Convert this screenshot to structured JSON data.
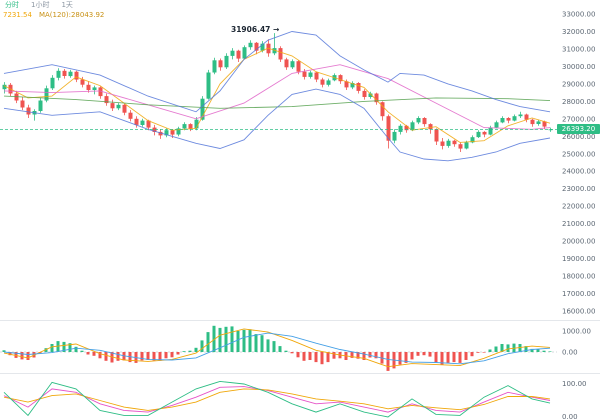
{
  "header": {
    "tabs": [
      {
        "label": "分时",
        "color": "#2ebd85"
      },
      {
        "label": "1小时",
        "color": "#8a94a0"
      },
      {
        "label": "1天",
        "color": "#8a94a0"
      }
    ],
    "legend": [
      {
        "text": "7231.54",
        "color": "#f0a70a"
      },
      {
        "text": "MA(120):28043.92",
        "color": "#c89116"
      }
    ]
  },
  "chart_data": {
    "type": "candlestick",
    "title": "",
    "last_price": 26393.2,
    "last_price_label": "26393.20",
    "annotation": {
      "text": "31906.47 →",
      "price": 31906.47
    },
    "colors": {
      "up": "#2ebd85",
      "down": "#ef5350",
      "axis_text": "#5c6773",
      "divider": "#e4e7eb",
      "zero_line": "#c8cdd4"
    },
    "y_axis": {
      "min": 16000,
      "max": 33000,
      "tick_step": 1000,
      "grid": false
    },
    "y_ticks": [
      {
        "value": 33000,
        "label": "33000.00"
      },
      {
        "value": 32000,
        "label": "32000.00"
      },
      {
        "value": 31000,
        "label": "31000.00"
      },
      {
        "value": 30000,
        "label": "30000.00"
      },
      {
        "value": 29000,
        "label": "29000.00"
      },
      {
        "value": 28000,
        "label": "28000.00"
      },
      {
        "value": 27000,
        "label": "27000.00"
      },
      {
        "value": 26000,
        "label": "26000.00"
      },
      {
        "value": 25000,
        "label": "25000.00"
      },
      {
        "value": 24000,
        "label": "24000.00"
      },
      {
        "value": 23000,
        "label": "23000.00"
      },
      {
        "value": 22000,
        "label": "22000.00"
      },
      {
        "value": 21000,
        "label": "21000.00"
      },
      {
        "value": 20000,
        "label": "20000.00"
      },
      {
        "value": 19000,
        "label": "19000.00"
      },
      {
        "value": 18000,
        "label": "18000.00"
      },
      {
        "value": 17000,
        "label": "17000.00"
      },
      {
        "value": 16000,
        "label": "16000.00"
      }
    ],
    "candles": [
      [
        28700,
        29100,
        28450,
        28950
      ],
      [
        28950,
        29050,
        28300,
        28450
      ],
      [
        28450,
        28600,
        27900,
        28050
      ],
      [
        28050,
        28250,
        27500,
        27650
      ],
      [
        27650,
        27800,
        27050,
        27250
      ],
      [
        27250,
        27550,
        26900,
        27450
      ],
      [
        27450,
        28200,
        27350,
        28050
      ],
      [
        28050,
        28900,
        27950,
        28750
      ],
      [
        28750,
        29500,
        28650,
        29350
      ],
      [
        29350,
        29900,
        29200,
        29750
      ],
      [
        29750,
        29850,
        29300,
        29450
      ],
      [
        29450,
        29800,
        29350,
        29700
      ],
      [
        29700,
        29750,
        29100,
        29250
      ],
      [
        29250,
        29400,
        28800,
        28950
      ],
      [
        28950,
        29150,
        28500,
        28650
      ],
      [
        28650,
        28900,
        28400,
        28800
      ],
      [
        28800,
        28850,
        28150,
        28300
      ],
      [
        28300,
        28450,
        27750,
        27900
      ],
      [
        27900,
        28100,
        27450,
        27600
      ],
      [
        27600,
        27900,
        27500,
        27800
      ],
      [
        27800,
        27850,
        27200,
        27350
      ],
      [
        27350,
        27500,
        26850,
        27000
      ],
      [
        27000,
        27150,
        26500,
        26650
      ],
      [
        26650,
        27000,
        26550,
        26900
      ],
      [
        26900,
        26950,
        26350,
        26500
      ],
      [
        26500,
        26650,
        26050,
        26250
      ],
      [
        26250,
        26400,
        25850,
        26050
      ],
      [
        26050,
        26450,
        25950,
        26350
      ],
      [
        26350,
        26400,
        25900,
        26100
      ],
      [
        26100,
        26550,
        26000,
        26450
      ],
      [
        26450,
        26800,
        26350,
        26700
      ],
      [
        26700,
        26750,
        26300,
        26450
      ],
      [
        26450,
        27100,
        26350,
        26950
      ],
      [
        26950,
        28300,
        26900,
        28150
      ],
      [
        28150,
        29800,
        28100,
        29650
      ],
      [
        29650,
        30500,
        29550,
        30350
      ],
      [
        30350,
        30450,
        29750,
        29950
      ],
      [
        29950,
        30750,
        29850,
        30600
      ],
      [
        30600,
        31050,
        30400,
        30900
      ],
      [
        30900,
        30950,
        30250,
        30450
      ],
      [
        30450,
        31200,
        30400,
        31100
      ],
      [
        31100,
        31500,
        30950,
        31350
      ],
      [
        31350,
        31400,
        30700,
        30900
      ],
      [
        30900,
        31450,
        30800,
        31300
      ],
      [
        31300,
        31550,
        30550,
        30750
      ],
      [
        30750,
        31906,
        30650,
        31050
      ],
      [
        31050,
        31150,
        30250,
        30400
      ],
      [
        30400,
        30500,
        29800,
        29950
      ],
      [
        29950,
        30400,
        29850,
        30300
      ],
      [
        30300,
        30350,
        29550,
        29700
      ],
      [
        29700,
        29850,
        29250,
        29400
      ],
      [
        29400,
        29750,
        29300,
        29650
      ],
      [
        29650,
        29700,
        29100,
        29250
      ],
      [
        29250,
        29350,
        28800,
        28950
      ],
      [
        28950,
        29300,
        28850,
        29200
      ],
      [
        29200,
        29600,
        29150,
        29500
      ],
      [
        29500,
        29550,
        29000,
        29150
      ],
      [
        29150,
        29250,
        28650,
        28800
      ],
      [
        28800,
        29150,
        28700,
        29050
      ],
      [
        29050,
        29100,
        28450,
        28600
      ],
      [
        28600,
        28700,
        28100,
        28250
      ],
      [
        28250,
        28550,
        28150,
        28450
      ],
      [
        28450,
        28500,
        27800,
        27950
      ],
      [
        27950,
        28000,
        26900,
        27150
      ],
      [
        27150,
        27250,
        25300,
        25750
      ],
      [
        25750,
        26400,
        25600,
        26250
      ],
      [
        26250,
        26700,
        26100,
        26600
      ],
      [
        26600,
        26650,
        26200,
        26350
      ],
      [
        26350,
        26900,
        26300,
        26800
      ],
      [
        26800,
        27150,
        26700,
        27050
      ],
      [
        27050,
        27100,
        26550,
        26700
      ],
      [
        26700,
        26750,
        26150,
        26400
      ],
      [
        26400,
        26450,
        25500,
        25700
      ],
      [
        25700,
        25900,
        25250,
        25450
      ],
      [
        25450,
        25850,
        25350,
        25750
      ],
      [
        25750,
        25800,
        25400,
        25550
      ],
      [
        25550,
        25650,
        25100,
        25300
      ],
      [
        25300,
        25750,
        25250,
        25650
      ],
      [
        25650,
        26050,
        25600,
        25950
      ],
      [
        25950,
        26350,
        25900,
        26250
      ],
      [
        26250,
        26300,
        25950,
        26100
      ],
      [
        26100,
        26600,
        26050,
        26500
      ],
      [
        26500,
        26900,
        26450,
        26800
      ],
      [
        26800,
        27150,
        26750,
        27050
      ],
      [
        27050,
        27100,
        26750,
        26900
      ],
      [
        26900,
        27250,
        26850,
        27150
      ],
      [
        27150,
        27400,
        27050,
        27250
      ],
      [
        27250,
        27300,
        26800,
        26950
      ],
      [
        26950,
        27000,
        26550,
        26700
      ],
      [
        26700,
        26950,
        26600,
        26850
      ],
      [
        26850,
        26900,
        26400,
        26550
      ],
      [
        26350,
        26500,
        26250,
        26393.2
      ]
    ],
    "overlays": {
      "ma7": {
        "color": "#f0a70a",
        "idx": [
          0,
          4,
          8,
          12,
          16,
          20,
          24,
          28,
          32,
          36,
          40,
          44,
          48,
          52,
          56,
          60,
          64,
          68,
          72,
          76,
          80,
          84,
          88,
          91
        ],
        "values": [
          28900,
          28200,
          28300,
          29400,
          28900,
          27900,
          26900,
          26350,
          26450,
          29000,
          30400,
          31050,
          30600,
          29700,
          29250,
          28800,
          27400,
          26350,
          26550,
          25650,
          25750,
          26600,
          27050,
          26750
        ]
      },
      "ma30": {
        "color": "#e064c8",
        "idx": [
          0,
          8,
          16,
          24,
          32,
          40,
          48,
          56,
          64,
          72,
          80,
          88,
          91
        ],
        "values": [
          28600,
          28500,
          28600,
          27800,
          27000,
          27900,
          29600,
          30100,
          29300,
          27900,
          26500,
          26400,
          26500
        ]
      },
      "ma120": {
        "color": "#55a14e",
        "idx": [
          0,
          12,
          24,
          36,
          48,
          60,
          72,
          84,
          91
        ],
        "values": [
          28300,
          28100,
          27800,
          27600,
          27700,
          28000,
          28200,
          28150,
          28044
        ]
      },
      "boll_upper": {
        "color": "#5577d9",
        "idx": [
          0,
          8,
          16,
          24,
          32,
          36,
          40,
          44,
          48,
          52,
          56,
          60,
          64,
          66,
          70,
          74,
          78,
          82,
          86,
          91
        ],
        "values": [
          29600,
          30100,
          29500,
          28300,
          27400,
          28600,
          30400,
          31500,
          32000,
          31800,
          30600,
          29800,
          29100,
          29600,
          29500,
          29000,
          28600,
          28100,
          27700,
          27400
        ]
      },
      "boll_lower": {
        "color": "#5577d9",
        "idx": [
          0,
          8,
          16,
          24,
          32,
          36,
          40,
          44,
          48,
          52,
          56,
          60,
          64,
          66,
          70,
          74,
          78,
          82,
          86,
          91
        ],
        "values": [
          27600,
          27200,
          27400,
          26400,
          25600,
          25300,
          25800,
          27200,
          28400,
          28700,
          28400,
          27600,
          25900,
          25100,
          24700,
          24600,
          24800,
          25100,
          25600,
          25900
        ]
      }
    },
    "macd": {
      "labels": [
        {
          "value": 1000,
          "label": "1000.00"
        },
        {
          "value": 0,
          "label": "0.00"
        }
      ],
      "histogram": [
        80,
        -150,
        -280,
        -350,
        -380,
        -260,
        -60,
        180,
        380,
        520,
        480,
        420,
        250,
        60,
        -120,
        -180,
        -300,
        -420,
        -500,
        -420,
        -400,
        -480,
        -520,
        -400,
        -380,
        -400,
        -420,
        -300,
        -250,
        -120,
        40,
        60,
        200,
        550,
        950,
        1250,
        1150,
        1200,
        1220,
        1000,
        1050,
        1080,
        850,
        800,
        600,
        520,
        280,
        60,
        -60,
        -250,
        -420,
        -380,
        -480,
        -580,
        -480,
        -320,
        -300,
        -380,
        -280,
        -320,
        -380,
        -260,
        -300,
        -550,
        -900,
        -780,
        -600,
        -520,
        -350,
        -180,
        -150,
        -220,
        -480,
        -620,
        -520,
        -480,
        -520,
        -380,
        -200,
        -40,
        -20,
        120,
        260,
        380,
        360,
        400,
        380,
        280,
        150,
        120,
        60,
        30
      ],
      "dif": {
        "color": "#f0a70a",
        "idx": [
          0,
          4,
          8,
          12,
          16,
          20,
          24,
          28,
          32,
          36,
          40,
          44,
          48,
          52,
          56,
          60,
          64,
          68,
          72,
          76,
          80,
          84,
          88,
          91
        ],
        "values": [
          -50,
          -280,
          250,
          380,
          -80,
          -380,
          -450,
          -350,
          -50,
          800,
          1100,
          950,
          550,
          80,
          -150,
          -300,
          -700,
          -550,
          -600,
          -650,
          -300,
          150,
          280,
          220
        ]
      },
      "dea": {
        "color": "#45a0e6",
        "idx": [
          0,
          4,
          8,
          12,
          16,
          20,
          24,
          28,
          32,
          36,
          40,
          44,
          48,
          52,
          56,
          60,
          64,
          68,
          72,
          76,
          80,
          84,
          88,
          91
        ],
        "values": [
          0,
          -120,
          -30,
          180,
          80,
          -180,
          -350,
          -380,
          -280,
          200,
          700,
          900,
          750,
          420,
          120,
          -100,
          -350,
          -480,
          -500,
          -560,
          -420,
          -80,
          120,
          180
        ]
      }
    },
    "kdj": {
      "labels": [
        {
          "value": 100,
          "label": "100.00"
        },
        {
          "value": 0,
          "label": "0.00"
        }
      ],
      "idx": [
        0,
        4,
        8,
        12,
        16,
        20,
        24,
        28,
        32,
        36,
        40,
        44,
        48,
        52,
        56,
        60,
        64,
        68,
        72,
        76,
        80,
        84,
        88,
        91
      ],
      "series": [
        {
          "name": "k",
          "color": "#e653c8",
          "values": [
            65,
            30,
            85,
            75,
            40,
            20,
            15,
            35,
            60,
            90,
            92,
            80,
            60,
            40,
            45,
            30,
            15,
            40,
            20,
            15,
            45,
            75,
            60,
            50
          ]
        },
        {
          "name": "d",
          "color": "#f0a70a",
          "values": [
            60,
            45,
            65,
            70,
            50,
            30,
            20,
            30,
            45,
            75,
            85,
            82,
            70,
            55,
            48,
            40,
            25,
            35,
            28,
            22,
            38,
            62,
            62,
            55
          ]
        },
        {
          "name": "j",
          "color": "#2ebd85",
          "values": [
            75,
            5,
            105,
            85,
            20,
            5,
            5,
            45,
            85,
            108,
            100,
            75,
            40,
            15,
            40,
            15,
            0,
            55,
            8,
            5,
            60,
            95,
            55,
            42
          ]
        }
      ]
    }
  }
}
